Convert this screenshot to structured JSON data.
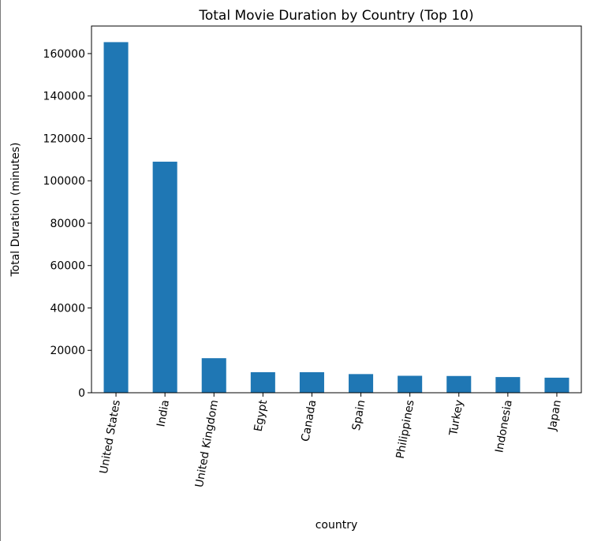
{
  "chart_data": {
    "type": "bar",
    "title": "Total Movie Duration by Country (Top 10)",
    "xlabel": "country",
    "ylabel": "Total Duration (minutes)",
    "categories": [
      "United States",
      "India",
      "United Kingdom",
      "Egypt",
      "Canada",
      "Spain",
      "Philippines",
      "Turkey",
      "Indonesia",
      "Japan"
    ],
    "values": [
      165400,
      109000,
      16300,
      9700,
      9700,
      8800,
      8000,
      7900,
      7400,
      7100
    ],
    "ylim": [
      0,
      173000
    ],
    "yticks": [
      0,
      20000,
      40000,
      60000,
      80000,
      100000,
      120000,
      140000,
      160000
    ],
    "ytick_labels": [
      "0",
      "20000",
      "40000",
      "60000",
      "80000",
      "100000",
      "120000",
      "140000",
      "160000"
    ],
    "bar_color": "#1f77b4",
    "grid": false,
    "legend": false
  }
}
